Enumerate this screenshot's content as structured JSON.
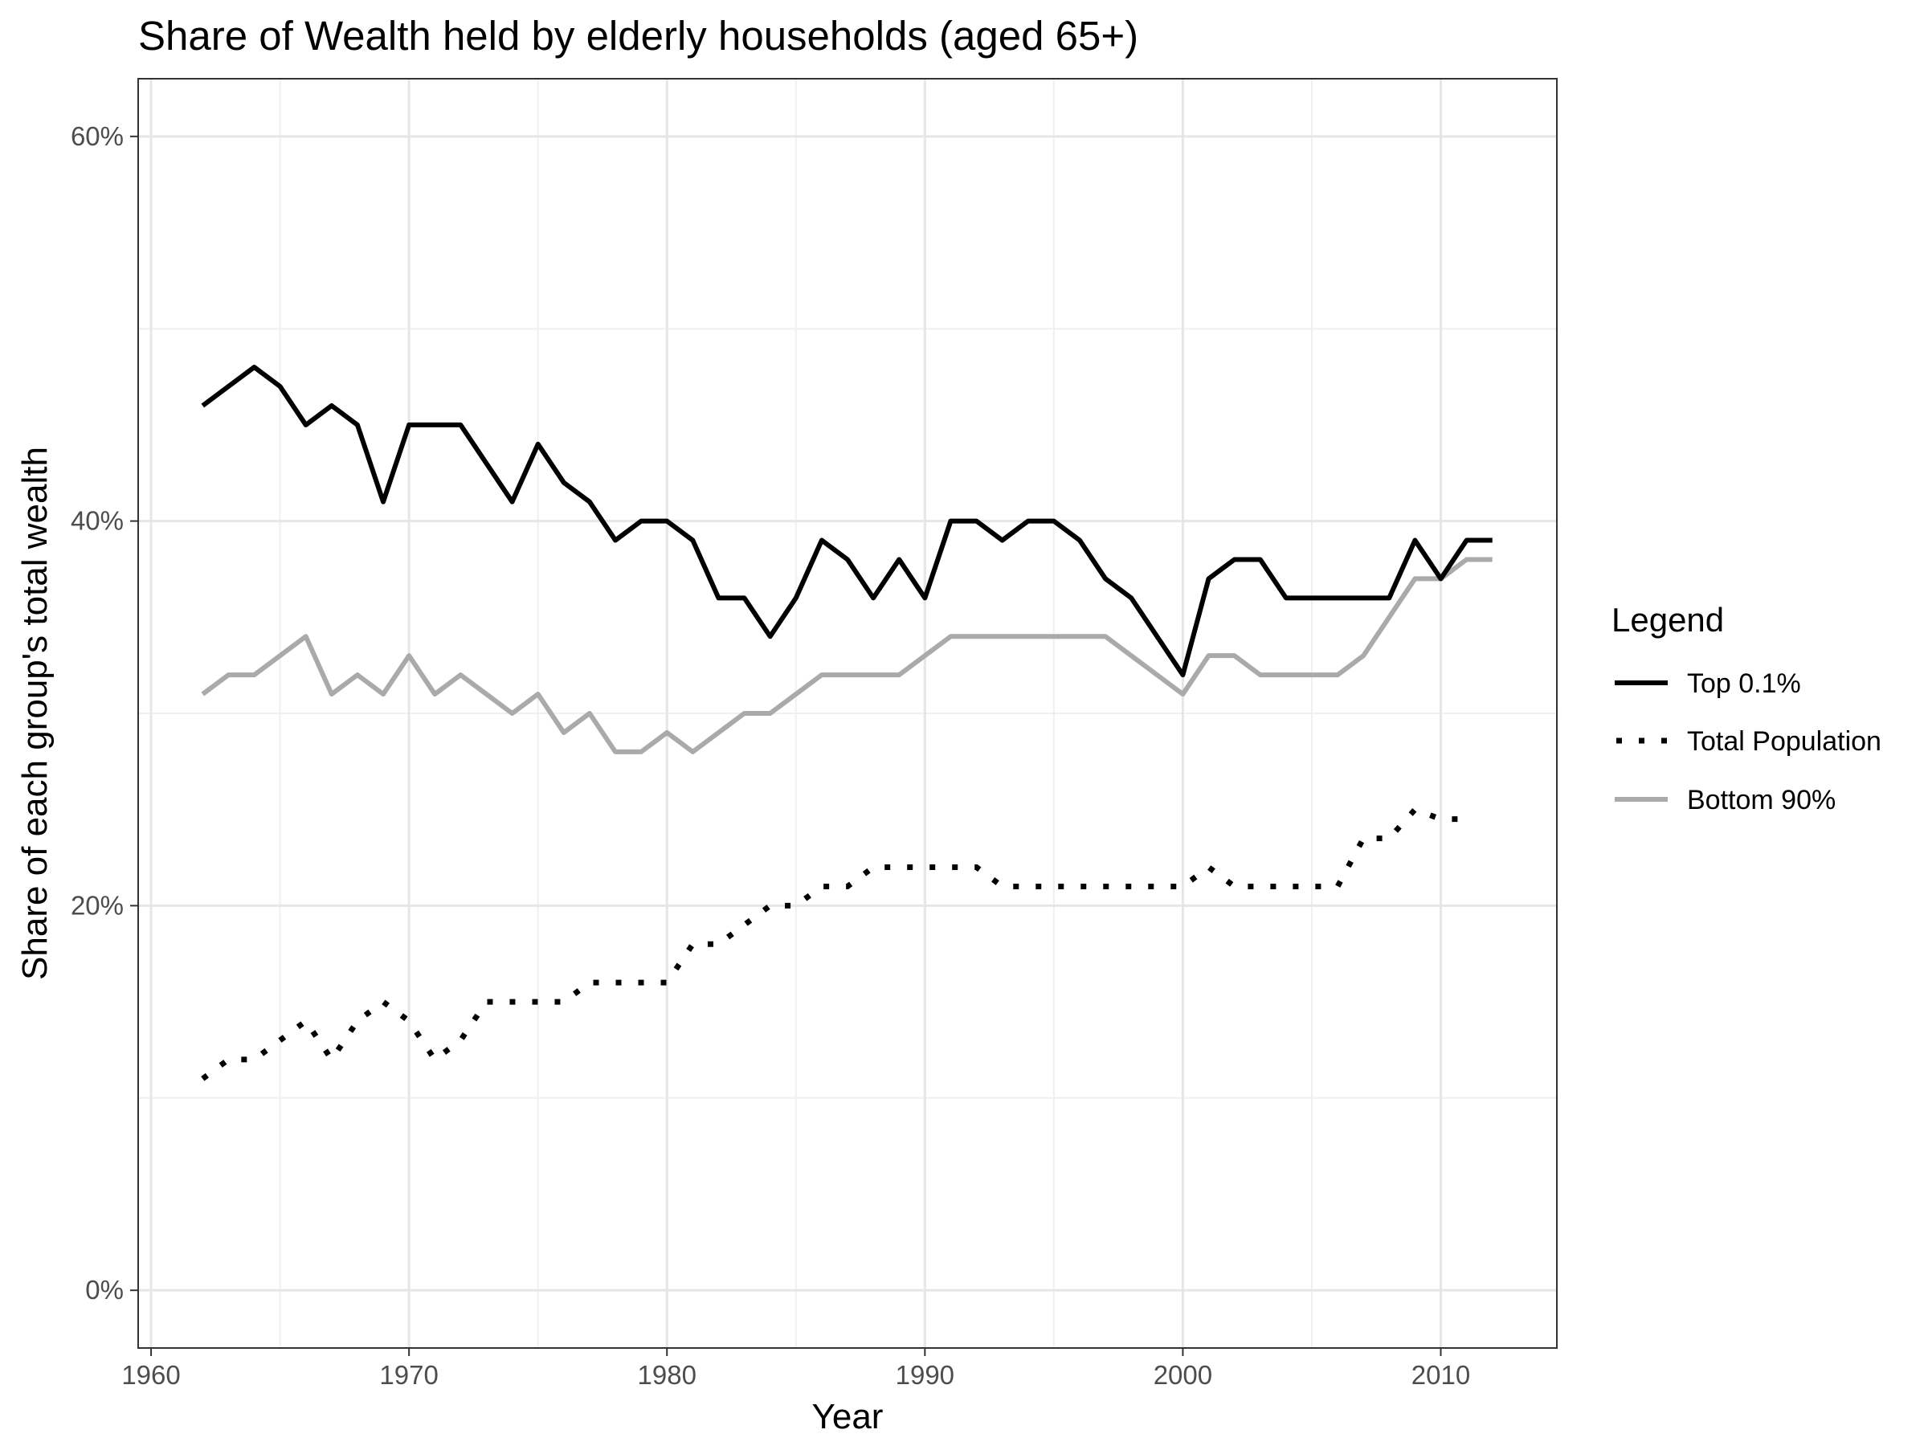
{
  "chart_data": {
    "type": "line",
    "title": "Share of Wealth held by elderly households (aged 65+)",
    "xlabel": "Year",
    "ylabel": "Share of each group's total wealth",
    "xlim": [
      1959.5,
      2014.5
    ],
    "ylim": [
      -0.03,
      0.63
    ],
    "x_ticks": [
      1960,
      1970,
      1980,
      1990,
      2000,
      2010
    ],
    "x_tick_labels": [
      "1960",
      "1970",
      "1980",
      "1990",
      "2000",
      "2010"
    ],
    "y_ticks": [
      0,
      0.2,
      0.4,
      0.6
    ],
    "y_tick_labels": [
      "0%",
      "20%",
      "40%",
      "60%"
    ],
    "grid": true,
    "legend": {
      "title": "Legend",
      "position": "right",
      "entries": [
        "Top 0.1%",
        "Total Population",
        "Bottom 90%"
      ]
    },
    "x": [
      1962,
      1963,
      1964,
      1965,
      1966,
      1967,
      1968,
      1969,
      1970,
      1971,
      1972,
      1973,
      1974,
      1975,
      1976,
      1977,
      1978,
      1979,
      1980,
      1981,
      1982,
      1983,
      1984,
      1985,
      1986,
      1987,
      1988,
      1989,
      1990,
      1991,
      1992,
      1993,
      1994,
      1995,
      1996,
      1997,
      1998,
      1999,
      2000,
      2001,
      2002,
      2003,
      2004,
      2005,
      2006,
      2007,
      2008,
      2009,
      2010,
      2011,
      2012
    ],
    "series": [
      {
        "name": "Top 0.1%",
        "color": "#000000",
        "style": "solid",
        "values": [
          0.46,
          0.47,
          0.48,
          0.47,
          0.45,
          0.46,
          0.45,
          0.41,
          0.45,
          0.45,
          0.45,
          0.43,
          0.41,
          0.44,
          0.42,
          0.41,
          0.39,
          0.4,
          0.4,
          0.39,
          0.36,
          0.36,
          0.34,
          0.36,
          0.39,
          0.38,
          0.36,
          0.38,
          0.36,
          0.4,
          0.4,
          0.39,
          0.4,
          0.4,
          0.39,
          0.37,
          0.36,
          0.34,
          0.32,
          0.37,
          0.38,
          0.38,
          0.36,
          0.36,
          0.36,
          0.36,
          0.36,
          0.39,
          0.37,
          0.39,
          0.39
        ]
      },
      {
        "name": "Total Population",
        "color": "#000000",
        "style": "dotted",
        "values": [
          0.11,
          0.12,
          0.12,
          0.13,
          0.14,
          0.12,
          0.14,
          0.15,
          0.14,
          0.12,
          0.13,
          0.15,
          0.15,
          0.15,
          0.15,
          0.16,
          0.16,
          0.16,
          0.16,
          0.18,
          0.18,
          0.19,
          0.2,
          0.2,
          0.21,
          0.21,
          0.22,
          0.22,
          0.22,
          0.22,
          0.22,
          0.21,
          0.21,
          0.21,
          0.21,
          0.21,
          0.21,
          0.21,
          0.21,
          0.22,
          0.21,
          0.21,
          0.21,
          0.21,
          0.21,
          0.235,
          0.235,
          0.25,
          0.245,
          0.245,
          null
        ]
      },
      {
        "name": "Bottom 90%",
        "color": "#aaaaaa",
        "style": "solid",
        "values": [
          0.31,
          0.32,
          0.32,
          0.33,
          0.34,
          0.31,
          0.32,
          0.31,
          0.33,
          0.31,
          0.32,
          0.31,
          0.3,
          0.31,
          0.29,
          0.3,
          0.28,
          0.28,
          0.29,
          0.28,
          0.29,
          0.3,
          0.3,
          0.31,
          0.32,
          0.32,
          0.32,
          0.32,
          0.33,
          0.34,
          0.34,
          0.34,
          0.34,
          0.34,
          0.34,
          0.34,
          0.33,
          0.32,
          0.31,
          0.33,
          0.33,
          0.32,
          0.32,
          0.32,
          0.32,
          0.33,
          0.35,
          0.37,
          0.37,
          0.38,
          0.38
        ]
      }
    ]
  }
}
